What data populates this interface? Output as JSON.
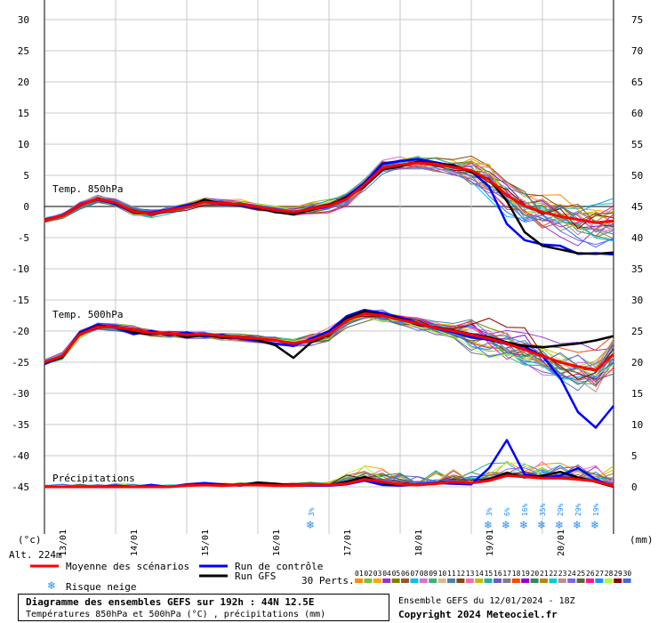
{
  "chart_data": {
    "type": "line",
    "title": "Diagramme des ensembles GEFS sur 192h : 44N 12.5E",
    "subtitle": "Températures 850hPa et 500hPa (°C) , précipitations (mm)",
    "left_axis": {
      "label": "(°c)",
      "ticks": [
        30,
        25,
        20,
        15,
        10,
        5,
        0,
        -5,
        -10,
        -15,
        -20,
        -25,
        -30,
        -35,
        -40,
        -45
      ],
      "range": [
        -45,
        30
      ]
    },
    "right_axis": {
      "label": "(mm)",
      "ticks": [
        75,
        70,
        65,
        60,
        55,
        50,
        45,
        40,
        35,
        30,
        25,
        20,
        15,
        10,
        5,
        0
      ],
      "range": [
        0,
        75
      ]
    },
    "x_axis": {
      "range": [
        0,
        192
      ],
      "date_labels": [
        "13/01",
        "14/01",
        "15/01",
        "16/01",
        "17/01",
        "18/01",
        "19/01",
        "20/01"
      ]
    },
    "altitude": "Alt. 224m",
    "panel_labels": {
      "t850": "Temp. 850hPa",
      "t500": "Temp. 500hPa",
      "precip": "Précipitations"
    },
    "series": [
      {
        "name": "Moyenne des scénarios",
        "panel": "t850",
        "color": "#ff0000",
        "x": [
          0,
          6,
          12,
          18,
          24,
          30,
          36,
          42,
          48,
          54,
          60,
          66,
          72,
          78,
          84,
          90,
          96,
          102,
          108,
          114,
          120,
          126,
          132,
          138,
          144,
          150,
          156,
          162,
          168,
          174,
          180,
          186,
          192
        ],
        "values": [
          -2.2,
          -1.5,
          0.2,
          1.2,
          0.6,
          -0.8,
          -1.2,
          -0.6,
          -0.1,
          0.7,
          0.5,
          0.4,
          -0.1,
          -0.6,
          -0.9,
          -0.4,
          0.1,
          1.2,
          3.5,
          6.2,
          6.7,
          7.0,
          6.8,
          6.3,
          5.8,
          4.3,
          1.8,
          0.1,
          -0.9,
          -1.6,
          -2.1,
          -2.6,
          -2.3
        ]
      },
      {
        "name": "Run de contrôle",
        "panel": "t850",
        "color": "#0000ff",
        "x": [
          0,
          6,
          12,
          18,
          24,
          30,
          36,
          42,
          48,
          54,
          60,
          66,
          72,
          78,
          84,
          90,
          96,
          102,
          108,
          114,
          120,
          126,
          132,
          138,
          144,
          150,
          156,
          162,
          168,
          174,
          180,
          186,
          192
        ],
        "values": [
          -2.3,
          -1.4,
          0.3,
          1.1,
          0.4,
          -0.9,
          -1.0,
          -0.5,
          0.2,
          0.8,
          0.6,
          0.2,
          -0.3,
          -0.8,
          -1.2,
          -0.5,
          0.0,
          1.5,
          3.8,
          6.8,
          7.3,
          7.6,
          7.1,
          6.5,
          5.6,
          3.2,
          -2.8,
          -5.4,
          -6.1,
          -6.3,
          -7.6,
          -7.5,
          -7.7
        ]
      },
      {
        "name": "Run GFS",
        "panel": "t850",
        "color": "#000000",
        "x": [
          0,
          6,
          12,
          18,
          24,
          30,
          36,
          42,
          48,
          54,
          60,
          66,
          72,
          78,
          84,
          90,
          96,
          102,
          108,
          114,
          120,
          126,
          132,
          138,
          144,
          150,
          156,
          162,
          168,
          174,
          180,
          186,
          192
        ],
        "values": [
          -2.2,
          -1.5,
          0.1,
          1.3,
          0.5,
          -0.7,
          -1.3,
          -0.6,
          -0.1,
          1.1,
          0.4,
          0.5,
          -0.2,
          -0.9,
          -1.2,
          -0.6,
          0.2,
          1.4,
          3.2,
          5.9,
          6.4,
          7.2,
          6.9,
          6.6,
          5.5,
          4.4,
          0.9,
          -4.1,
          -6.3,
          -6.9,
          -7.5,
          -7.6,
          -7.4
        ]
      },
      {
        "name": "Moyenne des scénarios",
        "panel": "t500",
        "color": "#ff0000",
        "x": [
          0,
          6,
          12,
          18,
          24,
          30,
          36,
          42,
          48,
          54,
          60,
          66,
          72,
          78,
          84,
          90,
          96,
          102,
          108,
          114,
          120,
          126,
          132,
          138,
          144,
          150,
          156,
          162,
          168,
          174,
          180,
          186,
          192
        ],
        "values": [
          -25.0,
          -24.0,
          -20.5,
          -19.3,
          -19.4,
          -19.8,
          -20.3,
          -20.4,
          -20.6,
          -20.5,
          -20.8,
          -21.0,
          -21.2,
          -21.5,
          -22.0,
          -21.5,
          -20.5,
          -18.3,
          -17.2,
          -17.5,
          -18.2,
          -18.8,
          -19.5,
          -20.0,
          -20.6,
          -21.2,
          -22.0,
          -23.0,
          -24.0,
          -25.0,
          -25.7,
          -26.3,
          -23.7
        ]
      },
      {
        "name": "Run de contrôle",
        "panel": "t500",
        "color": "#0000ff",
        "x": [
          0,
          6,
          12,
          18,
          24,
          30,
          36,
          42,
          48,
          54,
          60,
          66,
          72,
          78,
          84,
          90,
          96,
          102,
          108,
          114,
          120,
          126,
          132,
          138,
          144,
          150,
          156,
          162,
          168,
          174,
          180,
          186,
          192
        ],
        "values": [
          -25.3,
          -24.1,
          -20.2,
          -19.0,
          -19.5,
          -20.5,
          -20.0,
          -20.7,
          -20.2,
          -20.9,
          -20.6,
          -21.2,
          -21.6,
          -22.0,
          -22.4,
          -21.2,
          -20.0,
          -17.6,
          -16.6,
          -17.1,
          -17.8,
          -18.7,
          -19.6,
          -20.2,
          -21.0,
          -21.4,
          -22.1,
          -22.5,
          -24.0,
          -27.5,
          -33.0,
          -35.5,
          -32.0
        ]
      },
      {
        "name": "Run GFS",
        "panel": "t500",
        "color": "#000000",
        "x": [
          0,
          6,
          12,
          18,
          24,
          30,
          36,
          42,
          48,
          54,
          60,
          66,
          72,
          78,
          84,
          90,
          96,
          102,
          108,
          114,
          120,
          126,
          132,
          138,
          144,
          150,
          156,
          162,
          168,
          174,
          180,
          186,
          192
        ],
        "values": [
          -25.1,
          -24.2,
          -20.4,
          -19.2,
          -19.3,
          -20.2,
          -20.5,
          -20.3,
          -21.0,
          -20.6,
          -21.1,
          -21.0,
          -21.4,
          -22.3,
          -24.3,
          -21.8,
          -20.6,
          -17.9,
          -16.8,
          -17.4,
          -18.0,
          -19.0,
          -19.4,
          -19.9,
          -20.5,
          -21.0,
          -21.8,
          -22.4,
          -22.6,
          -22.3,
          -22.0,
          -21.5,
          -20.8
        ]
      },
      {
        "name": "Moyenne des scénarios",
        "panel": "precip",
        "color": "#ff0000",
        "x": [
          0,
          6,
          12,
          18,
          24,
          30,
          36,
          42,
          48,
          54,
          60,
          66,
          72,
          78,
          84,
          90,
          96,
          102,
          108,
          114,
          120,
          126,
          132,
          138,
          144,
          150,
          156,
          162,
          168,
          174,
          180,
          186,
          192
        ],
        "values": [
          0.0,
          0.0,
          0.0,
          0.0,
          0.0,
          0.0,
          0.0,
          0.0,
          0.2,
          0.3,
          0.2,
          0.3,
          0.3,
          0.2,
          0.2,
          0.3,
          0.3,
          0.5,
          1.2,
          0.8,
          0.4,
          0.3,
          0.5,
          0.8,
          0.6,
          1.0,
          1.8,
          1.6,
          1.4,
          1.4,
          1.2,
          0.9,
          0.1
        ]
      },
      {
        "name": "Run de contrôle",
        "panel": "precip",
        "color": "#0000ff",
        "x": [
          0,
          6,
          12,
          18,
          24,
          30,
          36,
          42,
          48,
          54,
          60,
          66,
          72,
          78,
          84,
          90,
          96,
          102,
          108,
          114,
          120,
          126,
          132,
          138,
          144,
          150,
          156,
          162,
          168,
          174,
          180,
          186,
          192
        ],
        "values": [
          0.0,
          0.0,
          0.0,
          0.0,
          0.2,
          0.0,
          0.3,
          0.0,
          0.4,
          0.6,
          0.4,
          0.2,
          0.6,
          0.3,
          0.2,
          0.2,
          0.2,
          0.4,
          1.0,
          0.3,
          0.2,
          0.4,
          0.6,
          0.5,
          0.4,
          3.0,
          7.5,
          2.0,
          1.5,
          1.8,
          3.0,
          1.2,
          0.0
        ]
      },
      {
        "name": "Run GFS",
        "panel": "precip",
        "color": "#000000",
        "x": [
          0,
          6,
          12,
          18,
          24,
          30,
          36,
          42,
          48,
          54,
          60,
          66,
          72,
          78,
          84,
          90,
          96,
          102,
          108,
          114,
          120,
          126,
          132,
          138,
          144,
          150,
          156,
          162,
          168,
          174,
          180,
          186,
          192
        ],
        "values": [
          0.0,
          0.0,
          0.0,
          0.0,
          0.0,
          0.0,
          0.0,
          0.0,
          0.2,
          0.4,
          0.3,
          0.3,
          0.7,
          0.5,
          0.2,
          0.3,
          0.3,
          0.8,
          1.6,
          0.6,
          0.3,
          0.3,
          0.5,
          0.8,
          0.6,
          1.2,
          2.2,
          1.5,
          1.8,
          2.4,
          1.5,
          0.8,
          0.0
        ]
      }
    ],
    "snow_risk": [
      {
        "x": 90,
        "percent": "3%"
      },
      {
        "x": 150,
        "percent": "3%"
      },
      {
        "x": 156,
        "percent": "6%"
      },
      {
        "x": 162,
        "percent": "16%"
      },
      {
        "x": 168,
        "percent": "35%"
      },
      {
        "x": 174,
        "percent": "29%"
      },
      {
        "x": 180,
        "percent": "29%"
      },
      {
        "x": 186,
        "percent": "19%"
      }
    ],
    "legend": {
      "mean": "Moyenne des scénarios",
      "control": "Run de contrôle",
      "gfs": "Run GFS",
      "snow": "Risque neige",
      "perts_label": "30 Perts."
    },
    "perturbations": [
      {
        "id": "01",
        "color": "#ff8c00"
      },
      {
        "id": "02",
        "color": "#7fbf3f"
      },
      {
        "id": "03",
        "color": "#ffa500"
      },
      {
        "id": "04",
        "color": "#9932cc"
      },
      {
        "id": "05",
        "color": "#808000"
      },
      {
        "id": "06",
        "color": "#a0522d"
      },
      {
        "id": "07",
        "color": "#00bfff"
      },
      {
        "id": "08",
        "color": "#da70d6"
      },
      {
        "id": "09",
        "color": "#3cb371"
      },
      {
        "id": "10",
        "color": "#deb887"
      },
      {
        "id": "11",
        "color": "#4682b4"
      },
      {
        "id": "12",
        "color": "#8b4513"
      },
      {
        "id": "13",
        "color": "#ff69b4"
      },
      {
        "id": "14",
        "color": "#c0c000"
      },
      {
        "id": "15",
        "color": "#20b2aa"
      },
      {
        "id": "16",
        "color": "#6a5acd"
      },
      {
        "id": "17",
        "color": "#808080"
      },
      {
        "id": "18",
        "color": "#ff4500"
      },
      {
        "id": "19",
        "color": "#9400d3"
      },
      {
        "id": "20",
        "color": "#2e8b57"
      },
      {
        "id": "21",
        "color": "#b8860b"
      },
      {
        "id": "22",
        "color": "#00ced1"
      },
      {
        "id": "23",
        "color": "#bc8f8f"
      },
      {
        "id": "24",
        "color": "#7b68ee"
      },
      {
        "id": "25",
        "color": "#556b2f"
      },
      {
        "id": "26",
        "color": "#ff1493"
      },
      {
        "id": "27",
        "color": "#1e90ff"
      },
      {
        "id": "28",
        "color": "#adff2f"
      },
      {
        "id": "29",
        "color": "#8b0000"
      },
      {
        "id": "30",
        "color": "#4169e1"
      }
    ]
  },
  "footer": {
    "title": "Diagramme des ensembles GEFS sur 192h : 44N 12.5E",
    "subtitle": "Températures 850hPa et 500hPa (°C) , précipitations (mm)",
    "run": "Ensemble GEFS du 12/01/2024 - 18Z",
    "copyright": "Copyright 2024 Meteociel.fr"
  }
}
